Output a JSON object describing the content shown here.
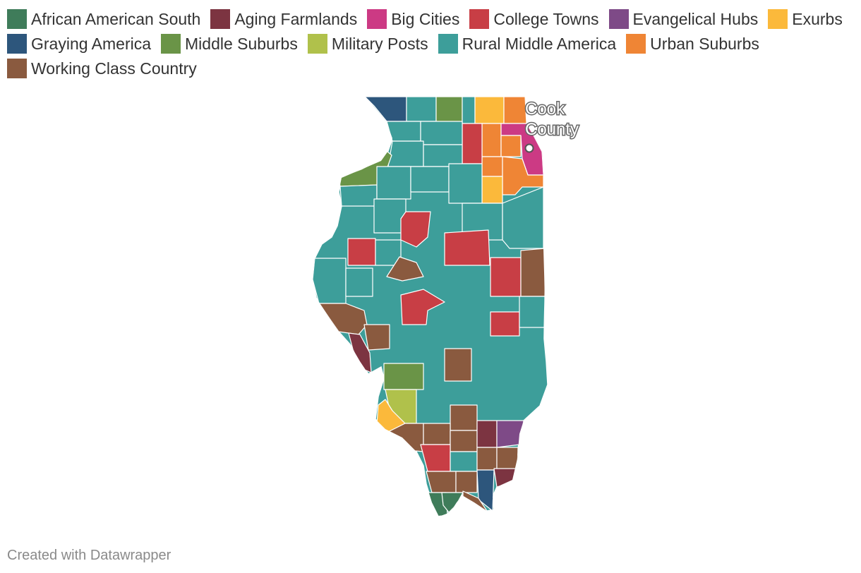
{
  "legend": {
    "items": [
      {
        "label": "African American South",
        "color": "#3f7c5a"
      },
      {
        "label": "Aging Farmlands",
        "color": "#7c3441"
      },
      {
        "label": "Big Cities",
        "color": "#cc3a84"
      },
      {
        "label": "College Towns",
        "color": "#c83e45"
      },
      {
        "label": "Evangelical Hubs",
        "color": "#7e4a87"
      },
      {
        "label": "Exurbs",
        "color": "#fbb93b"
      },
      {
        "label": "Graying America",
        "color": "#2d567c"
      },
      {
        "label": "Middle Suburbs",
        "color": "#6a9447"
      },
      {
        "label": "Military Posts",
        "color": "#b0c14b"
      },
      {
        "label": "Rural Middle America",
        "color": "#3d9e9a"
      },
      {
        "label": "Urban Suburbs",
        "color": "#ef8535"
      },
      {
        "label": "Working Class Country",
        "color": "#8a5a3f"
      }
    ]
  },
  "map": {
    "background_color": "#3d9e9a",
    "callout": {
      "line1": "Cook",
      "line2": "County"
    }
  },
  "footer": {
    "credit": "Created with Datawrapper"
  }
}
